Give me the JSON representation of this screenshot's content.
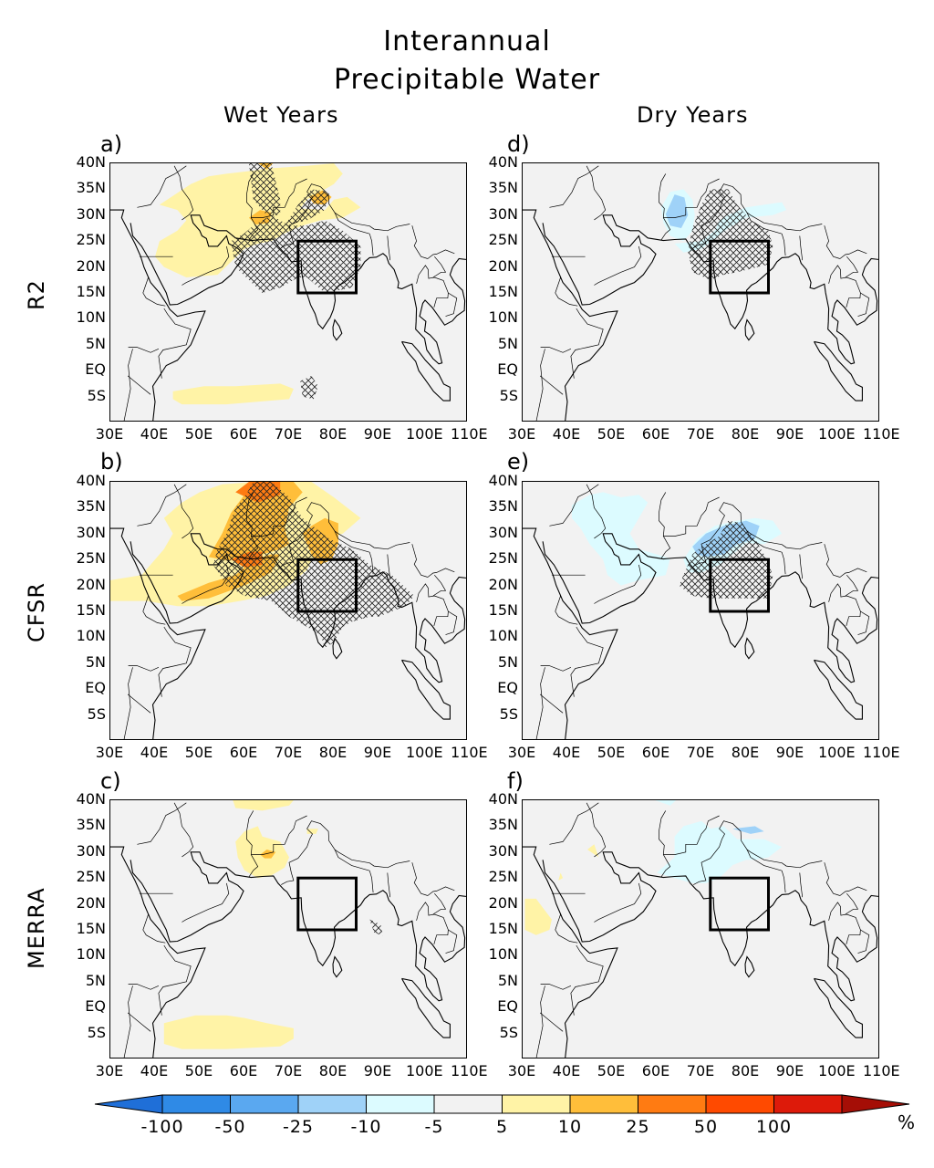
{
  "title_line1": "Interannual",
  "title_line2": "Precipitable Water",
  "columns": [
    "Wet Years",
    "Dry Years"
  ],
  "rows": [
    "R2",
    "CFSR",
    "MERRA"
  ],
  "panels": [
    {
      "label": "a)"
    },
    {
      "label": "d)"
    },
    {
      "label": "b)"
    },
    {
      "label": "e)"
    },
    {
      "label": "c)"
    },
    {
      "label": "f)"
    }
  ],
  "lat_ticks": [
    "40N",
    "35N",
    "30N",
    "25N",
    "20N",
    "15N",
    "10N",
    "5N",
    "EQ",
    "5S"
  ],
  "lon_ticks": [
    "30E",
    "40E",
    "50E",
    "60E",
    "70E",
    "80E",
    "90E",
    "100E",
    "110E"
  ],
  "colorbar": {
    "labels": [
      "-100",
      "-50",
      "-25",
      "-10",
      "-5",
      "5",
      "10",
      "25",
      "50",
      "100"
    ],
    "colors": [
      "#1f6fd8",
      "#2f8ae6",
      "#5aa8f0",
      "#9fd2f8",
      "#dcfbff",
      "#f2f2f2",
      "#fff3a6",
      "#ffbe3a",
      "#ff7b12",
      "#ff4a00",
      "#dd1a0a",
      "#a50e06"
    ],
    "unit": "%"
  },
  "map_extent": {
    "lon": [
      30,
      110
    ],
    "lat": [
      -10,
      40
    ]
  },
  "box_region": {
    "lon": [
      72,
      85
    ],
    "lat": [
      15,
      25
    ]
  }
}
